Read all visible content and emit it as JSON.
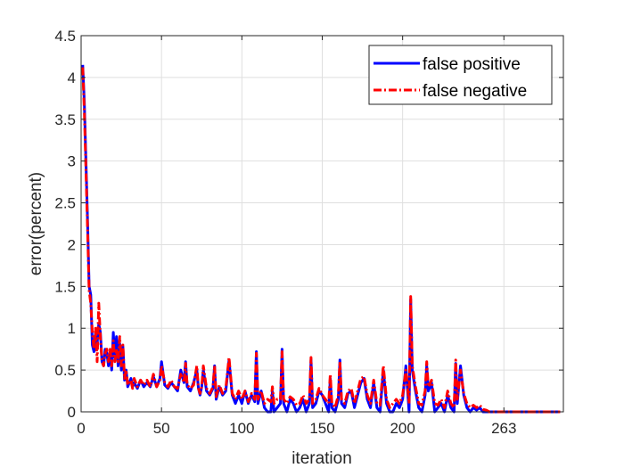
{
  "chart_data": {
    "type": "line",
    "title": "",
    "xlabel": "iteration",
    "ylabel": "error(percent)",
    "xlim": [
      0,
      300
    ],
    "ylim": [
      0,
      4.5
    ],
    "xticks": [
      0,
      50,
      100,
      150,
      200,
      263
    ],
    "xtick_labels": [
      "0",
      "50",
      "100",
      "150",
      "200",
      "263"
    ],
    "yticks": [
      0,
      0.5,
      1,
      1.5,
      2,
      2.5,
      3,
      3.5,
      4,
      4.5
    ],
    "ytick_labels": [
      "0",
      "0.5",
      "1",
      "1.5",
      "2",
      "2.5",
      "3",
      "3.5",
      "4",
      "4.5"
    ],
    "grid": true,
    "legend_position": "top-right",
    "series": [
      {
        "name": "false positive",
        "color": "#0000ff",
        "style": "solid",
        "x": [
          1,
          2,
          3,
          4,
          5,
          6,
          7,
          8,
          9,
          10,
          11,
          12,
          13,
          14,
          15,
          16,
          17,
          18,
          19,
          20,
          21,
          22,
          23,
          24,
          25,
          26,
          27,
          28,
          29,
          30,
          31,
          32,
          33,
          35,
          37,
          39,
          41,
          43,
          45,
          47,
          49,
          50,
          52,
          54,
          56,
          58,
          60,
          62,
          64,
          65,
          66,
          68,
          70,
          72,
          73,
          74,
          75,
          76,
          78,
          80,
          82,
          83,
          84,
          86,
          88,
          90,
          92,
          94,
          96,
          97,
          98,
          100,
          102,
          104,
          106,
          108,
          109,
          110,
          112,
          114,
          116,
          118,
          119,
          120,
          122,
          124,
          125,
          126,
          128,
          130,
          132,
          134,
          136,
          138,
          140,
          142,
          143,
          144,
          146,
          148,
          150,
          152,
          154,
          155,
          156,
          158,
          160,
          161,
          162,
          164,
          166,
          168,
          170,
          172,
          174,
          176,
          178,
          180,
          182,
          184,
          186,
          188,
          190,
          192,
          194,
          196,
          198,
          200,
          202,
          204,
          205,
          206,
          208,
          210,
          212,
          214,
          215,
          216,
          218,
          220,
          222,
          224,
          226,
          228,
          230,
          232,
          233,
          234,
          236,
          238,
          240,
          242,
          244,
          246,
          248,
          250,
          252,
          254,
          256,
          258,
          260,
          262,
          263,
          264,
          270,
          280,
          290,
          298
        ],
        "values": [
          4.15,
          3.7,
          3.0,
          2.3,
          1.5,
          1.4,
          0.8,
          0.72,
          0.95,
          0.82,
          1.05,
          0.95,
          0.6,
          0.55,
          0.75,
          0.7,
          0.55,
          0.72,
          0.5,
          0.95,
          0.65,
          0.9,
          0.55,
          0.82,
          0.5,
          0.78,
          0.38,
          0.5,
          0.3,
          0.35,
          0.4,
          0.3,
          0.35,
          0.28,
          0.38,
          0.3,
          0.35,
          0.3,
          0.42,
          0.3,
          0.4,
          0.6,
          0.32,
          0.28,
          0.35,
          0.3,
          0.25,
          0.5,
          0.35,
          0.6,
          0.3,
          0.25,
          0.35,
          0.5,
          0.28,
          0.2,
          0.3,
          0.5,
          0.25,
          0.2,
          0.28,
          0.55,
          0.15,
          0.3,
          0.2,
          0.25,
          0.62,
          0.2,
          0.1,
          0.15,
          0.2,
          0.1,
          0.25,
          0.1,
          0.2,
          0.12,
          0.72,
          0.1,
          0.25,
          0.05,
          0.0,
          0.0,
          0.25,
          0.0,
          0.05,
          0.1,
          0.75,
          0.1,
          0.0,
          0.15,
          0.1,
          0.0,
          0.05,
          0.15,
          0.0,
          0.1,
          0.62,
          0.05,
          0.1,
          0.25,
          0.2,
          0.1,
          0.0,
          0.4,
          0.05,
          0.0,
          0.15,
          0.62,
          0.1,
          0.05,
          0.22,
          0.25,
          0.05,
          0.2,
          0.35,
          0.4,
          0.15,
          0.05,
          0.35,
          0.05,
          0.0,
          0.5,
          0.1,
          0.0,
          0.0,
          0.1,
          0.05,
          0.15,
          0.55,
          0.0,
          1.35,
          0.5,
          0.25,
          0.05,
          0.0,
          0.2,
          0.55,
          0.25,
          0.35,
          0.0,
          0.05,
          0.1,
          0.0,
          0.2,
          0.05,
          0.0,
          0.58,
          0.1,
          0.55,
          0.2,
          0.05,
          0.0,
          0.05,
          0.02,
          0.05,
          0.0,
          0.0,
          0.0,
          0.0,
          0.0,
          0.0,
          0.0,
          0.0,
          0.0,
          0.0,
          0.0,
          0.0,
          0.0
        ]
      },
      {
        "name": "false negative",
        "color": "#ff0000",
        "style": "dashdot",
        "x": [
          1,
          2,
          3,
          4,
          5,
          6,
          7,
          8,
          9,
          10,
          11,
          12,
          13,
          14,
          15,
          16,
          17,
          18,
          19,
          20,
          21,
          22,
          23,
          24,
          25,
          26,
          27,
          28,
          29,
          30,
          31,
          32,
          33,
          35,
          37,
          39,
          41,
          43,
          45,
          47,
          49,
          50,
          52,
          54,
          56,
          58,
          60,
          62,
          64,
          65,
          66,
          68,
          70,
          72,
          73,
          74,
          75,
          76,
          78,
          80,
          82,
          83,
          84,
          86,
          88,
          90,
          92,
          94,
          96,
          97,
          98,
          100,
          102,
          104,
          106,
          108,
          109,
          110,
          112,
          114,
          116,
          118,
          119,
          120,
          122,
          124,
          125,
          126,
          128,
          130,
          132,
          134,
          136,
          138,
          140,
          142,
          143,
          144,
          146,
          148,
          150,
          152,
          154,
          155,
          156,
          158,
          160,
          161,
          162,
          164,
          166,
          168,
          170,
          172,
          174,
          176,
          178,
          180,
          182,
          184,
          186,
          188,
          190,
          192,
          194,
          196,
          198,
          200,
          202,
          204,
          205,
          206,
          208,
          210,
          212,
          214,
          215,
          216,
          218,
          220,
          222,
          224,
          226,
          228,
          230,
          232,
          233,
          234,
          236,
          238,
          240,
          242,
          244,
          246,
          248,
          250,
          252,
          254,
          256,
          258,
          260,
          262,
          263,
          264,
          270,
          280,
          290,
          298
        ],
        "values": [
          4.12,
          3.6,
          2.9,
          2.2,
          1.45,
          1.3,
          0.95,
          0.75,
          1.0,
          0.6,
          1.3,
          0.9,
          0.6,
          0.55,
          0.7,
          0.75,
          0.6,
          0.75,
          0.55,
          0.85,
          0.6,
          0.75,
          0.6,
          0.9,
          0.55,
          0.8,
          0.4,
          0.5,
          0.32,
          0.35,
          0.38,
          0.28,
          0.4,
          0.3,
          0.38,
          0.32,
          0.38,
          0.3,
          0.45,
          0.3,
          0.38,
          0.55,
          0.35,
          0.3,
          0.38,
          0.3,
          0.28,
          0.45,
          0.35,
          0.58,
          0.32,
          0.28,
          0.32,
          0.55,
          0.28,
          0.22,
          0.3,
          0.55,
          0.28,
          0.22,
          0.3,
          0.55,
          0.18,
          0.32,
          0.22,
          0.28,
          0.65,
          0.22,
          0.15,
          0.2,
          0.25,
          0.15,
          0.25,
          0.12,
          0.22,
          0.15,
          0.7,
          0.15,
          0.25,
          0.1,
          0.15,
          0.12,
          0.3,
          0.1,
          0.15,
          0.15,
          0.72,
          0.15,
          0.1,
          0.18,
          0.15,
          0.08,
          0.1,
          0.2,
          0.1,
          0.15,
          0.65,
          0.1,
          0.15,
          0.28,
          0.2,
          0.15,
          0.1,
          0.45,
          0.1,
          0.05,
          0.2,
          0.6,
          0.15,
          0.1,
          0.25,
          0.28,
          0.1,
          0.25,
          0.4,
          0.42,
          0.2,
          0.1,
          0.38,
          0.1,
          0.08,
          0.55,
          0.15,
          0.05,
          0.1,
          0.15,
          0.1,
          0.2,
          0.5,
          0.1,
          1.38,
          0.55,
          0.3,
          0.1,
          0.08,
          0.25,
          0.6,
          0.3,
          0.38,
          0.1,
          0.08,
          0.15,
          0.05,
          0.25,
          0.1,
          0.05,
          0.62,
          0.15,
          0.5,
          0.22,
          0.1,
          0.05,
          0.08,
          0.05,
          0.08,
          0.03,
          0.02,
          0.0,
          0.0,
          0.0,
          0.0,
          0.0,
          0.0,
          0.0,
          0.0,
          0.0,
          0.0,
          0.0
        ]
      }
    ]
  }
}
